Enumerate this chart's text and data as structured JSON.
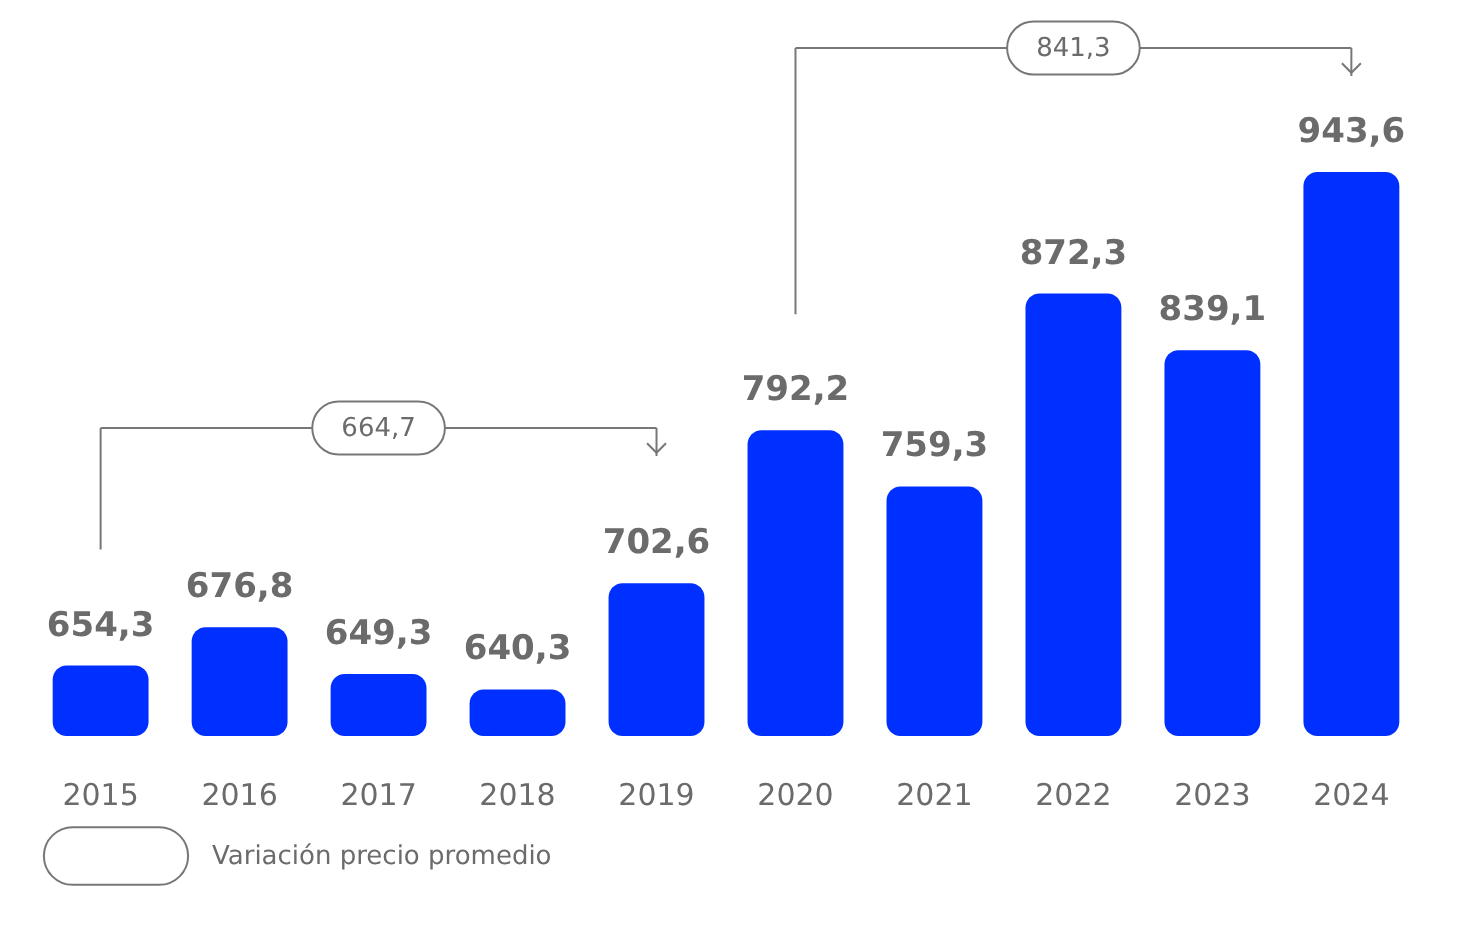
{
  "chart_data": {
    "type": "bar",
    "categories": [
      "2015",
      "2016",
      "2017",
      "2018",
      "2019",
      "2020",
      "2021",
      "2022",
      "2023",
      "2024"
    ],
    "values": [
      654.3,
      676.8,
      649.3,
      640.3,
      702.6,
      792.2,
      759.3,
      872.3,
      839.1,
      943.6
    ],
    "value_labels": [
      "654,3",
      "676,8",
      "649,3",
      "640,3",
      "702,6",
      "792,2",
      "759,3",
      "872,3",
      "839,1",
      "943,6"
    ],
    "color": "#0030ff",
    "ylim": [
      613,
      1035
    ],
    "tick_labels": "x",
    "grid": false,
    "annotations": [
      "664,7",
      "841,3",
      "Variación precio promedio"
    ]
  }
}
